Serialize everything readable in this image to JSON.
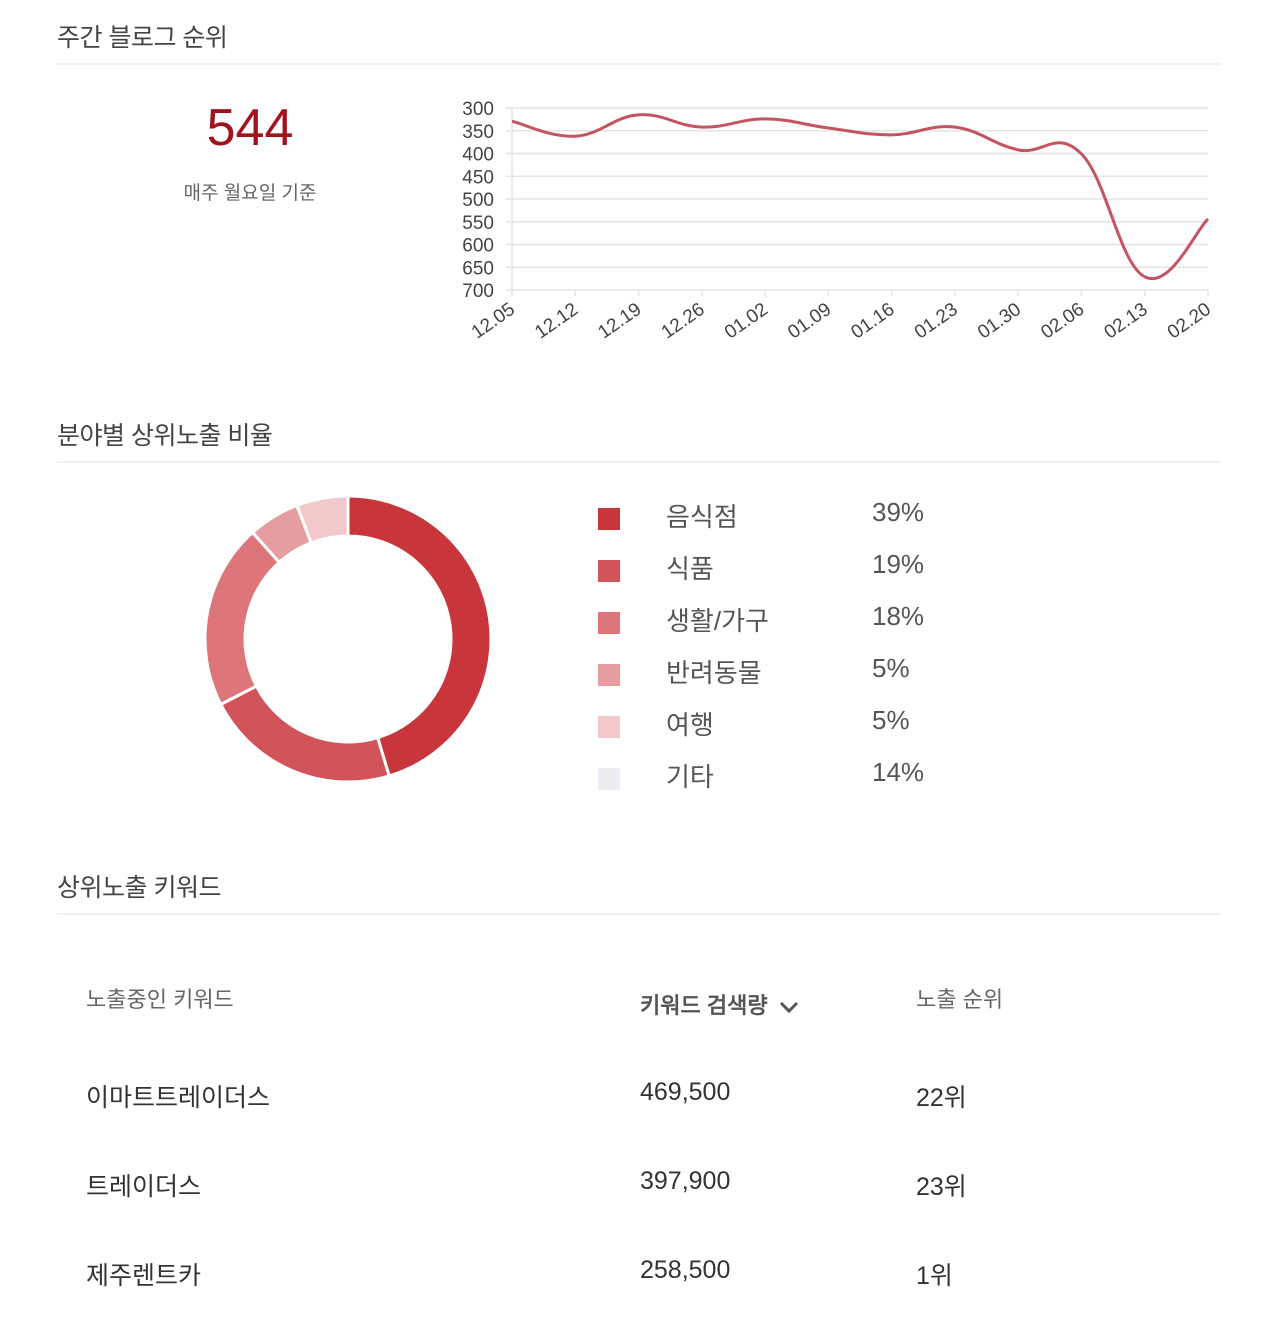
{
  "weekly_rank": {
    "title": "주간 블로그 순위",
    "current_rank": "544",
    "basis_note": "매주 월요일 기준"
  },
  "category_ratio": {
    "title": "분야별 상위노출 비율"
  },
  "keywords": {
    "title": "상위노출 키워드",
    "columns": {
      "keyword": "노출중인 키워드",
      "search_volume": "키워드 검색량",
      "rank": "노출 순위"
    },
    "sort_icon": "chevron-down-icon",
    "rows": [
      {
        "keyword": "이마트트레이더스",
        "search_volume": "469,500",
        "rank": "22위"
      },
      {
        "keyword": "트레이더스",
        "search_volume": "397,900",
        "rank": "23위"
      },
      {
        "keyword": "제주렌트카",
        "search_volume": "258,500",
        "rank": "1위"
      }
    ]
  },
  "chart_data": [
    {
      "type": "line",
      "title": "주간 블로그 순위",
      "x": [
        "12.05",
        "12.12",
        "12.19",
        "12.26",
        "01.02",
        "01.09",
        "01.16",
        "01.23",
        "01.30",
        "02.06",
        "02.13",
        "02.20"
      ],
      "series": [
        {
          "name": "블로그 순위",
          "values": [
            329,
            362,
            315,
            342,
            324,
            344,
            359,
            342,
            392,
            401,
            671,
            544
          ],
          "color": "#c45560"
        }
      ],
      "yticks": [
        "300",
        "350",
        "400",
        "450",
        "500",
        "550",
        "600",
        "650",
        "700"
      ],
      "ylim": [
        300,
        700
      ],
      "y_inverted": true,
      "grid": true,
      "xlabel": "",
      "ylabel": ""
    },
    {
      "type": "pie",
      "subtype": "donut",
      "title": "분야별 상위노출 비율",
      "categories": [
        "음식점",
        "식품",
        "생활/가구",
        "반려동물",
        "여행",
        "기타"
      ],
      "values": [
        39,
        19,
        18,
        5,
        5,
        14
      ],
      "labels": [
        "39%",
        "19%",
        "18%",
        "5%",
        "5%",
        "14%"
      ],
      "colors": [
        "#c8353b",
        "#d2545b",
        "#dc767b",
        "#e59da0",
        "#f2c9cb",
        "#ecedf0"
      ],
      "legend_position": "right"
    }
  ]
}
